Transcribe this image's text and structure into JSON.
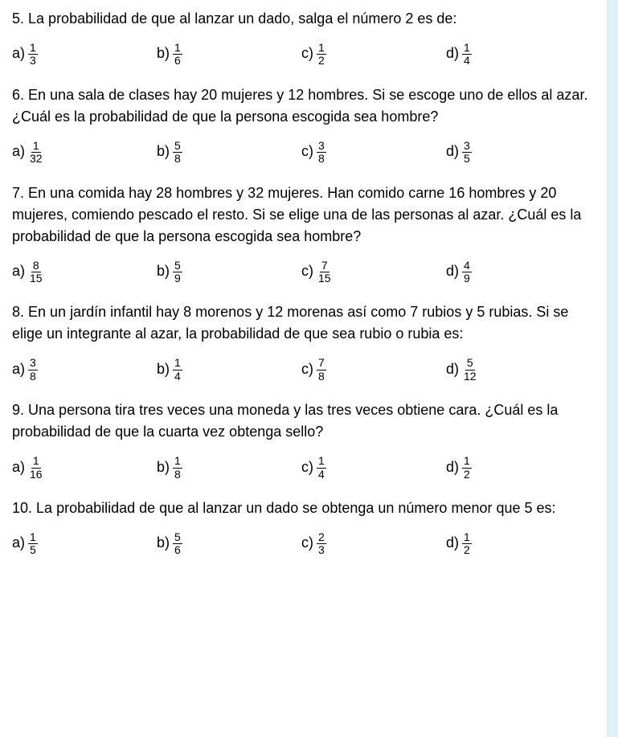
{
  "sidebar": {
    "background_color": "#e0f0fb"
  },
  "questions": [
    {
      "number": "5.",
      "text": "La probabilidad de que al lanzar un dado, salga el número 2 es de:",
      "options": [
        {
          "label": "a)",
          "num": "1",
          "den": "3"
        },
        {
          "label": "b)",
          "num": "1",
          "den": "6"
        },
        {
          "label": "c)",
          "num": "1",
          "den": "2"
        },
        {
          "label": "d)",
          "num": "1",
          "den": "4"
        }
      ]
    },
    {
      "number": "6.",
      "text": "En una sala de clases hay 20 mujeres y 12 hombres. Si se escoge uno de ellos al azar. ¿Cuál es la probabilidad de que la persona escogida sea hombre?",
      "options": [
        {
          "label": "a)",
          "num": "1",
          "den": "32"
        },
        {
          "label": "b)",
          "num": "5",
          "den": "8"
        },
        {
          "label": "c)",
          "num": "3",
          "den": "8"
        },
        {
          "label": "d)",
          "num": "3",
          "den": "5"
        }
      ]
    },
    {
      "number": "7.",
      "text": "En una comida hay 28 hombres y 32 mujeres. Han comido carne 16 hombres y 20 mujeres, comiendo pescado el resto. Si se elige una de las personas al azar. ¿Cuál es la probabilidad de que la persona escogida sea hombre?",
      "options": [
        {
          "label": "a)",
          "num": "8",
          "den": "15"
        },
        {
          "label": "b)",
          "num": "5",
          "den": "9"
        },
        {
          "label": "c)",
          "num": "7",
          "den": "15"
        },
        {
          "label": "d)",
          "num": "4",
          "den": "9"
        }
      ]
    },
    {
      "number": "8.",
      "text": "En un jardín infantil hay 8 morenos y 12 morenas así como 7 rubios y 5 rubias. Si se elige un integrante al azar, la probabilidad de que sea rubio o rubia es:",
      "options": [
        {
          "label": "a)",
          "num": "3",
          "den": "8"
        },
        {
          "label": "b)",
          "num": "1",
          "den": "4"
        },
        {
          "label": "c)",
          "num": "7",
          "den": "8"
        },
        {
          "label": "d)",
          "num": "5",
          "den": "12"
        }
      ]
    },
    {
      "number": "9.",
      "text": "Una persona tira tres veces una moneda y las tres veces obtiene cara. ¿Cuál es la probabilidad de que la cuarta vez obtenga sello?",
      "options": [
        {
          "label": "a)",
          "num": "1",
          "den": "16"
        },
        {
          "label": "b)",
          "num": "1",
          "den": "8"
        },
        {
          "label": "c)",
          "num": "1",
          "den": "4"
        },
        {
          "label": "d)",
          "num": "1",
          "den": "2"
        }
      ]
    },
    {
      "number": "10.",
      "text": "La probabilidad de que al lanzar un dado se obtenga un número menor que 5 es:",
      "options": [
        {
          "label": "a)",
          "num": "1",
          "den": "5"
        },
        {
          "label": "b)",
          "num": "5",
          "den": "6"
        },
        {
          "label": "c)",
          "num": "2",
          "den": "3"
        },
        {
          "label": "d)",
          "num": "1",
          "den": "2"
        }
      ]
    }
  ]
}
